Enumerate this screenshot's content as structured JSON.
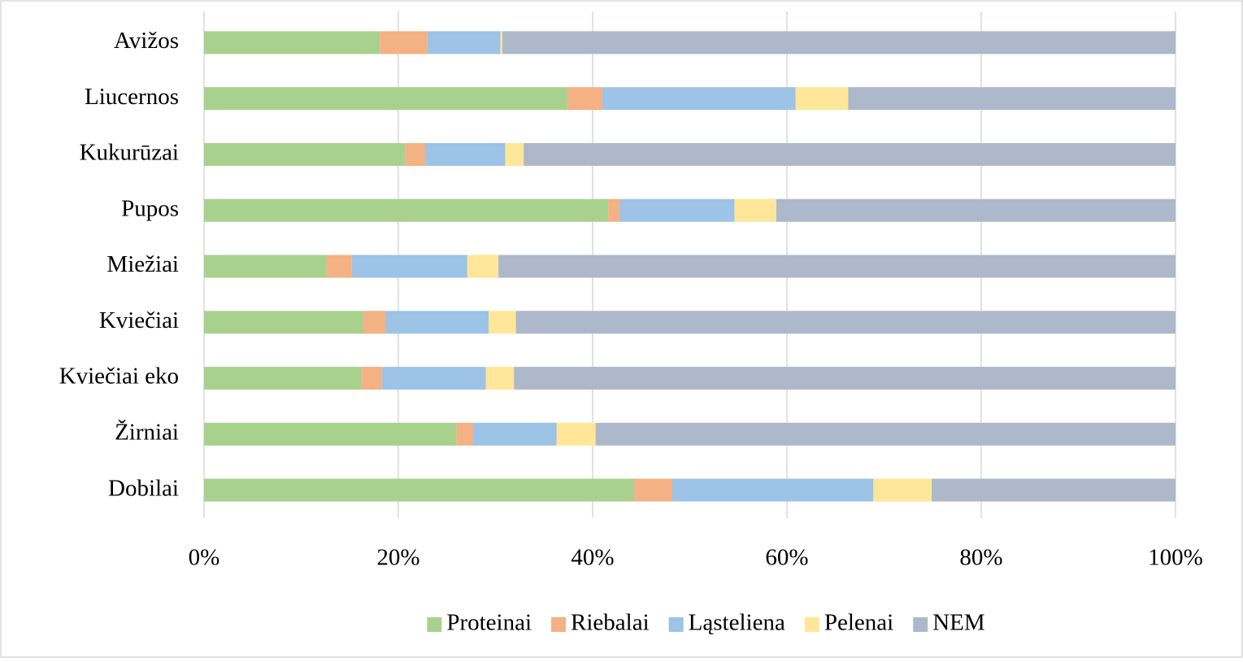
{
  "chart_data": {
    "type": "stacked_barh",
    "categories": [
      "Avižos",
      "Liucernos",
      "Kukurūzai",
      "Pupos",
      "Miežiai",
      "Kviečiai",
      "Kviečiai eko",
      "Žirniai",
      "Dobilai"
    ],
    "series": [
      {
        "name": "Proteinai",
        "color": "#a9d18e",
        "values": [
          18.1,
          37.4,
          20.7,
          41.6,
          12.6,
          16.4,
          16.2,
          26.0,
          44.3
        ]
      },
      {
        "name": "Riebalai",
        "color": "#f4b183",
        "values": [
          4.9,
          3.6,
          2.1,
          1.2,
          2.6,
          2.3,
          2.1,
          1.7,
          3.9
        ]
      },
      {
        "name": "Ląsteliena",
        "color": "#9dc3e6",
        "values": [
          7.5,
          19.9,
          8.2,
          11.8,
          11.9,
          10.6,
          10.7,
          8.6,
          20.7
        ]
      },
      {
        "name": "Pelenai",
        "color": "#ffe699",
        "values": [
          0.2,
          5.4,
          1.9,
          4.3,
          3.2,
          2.8,
          2.9,
          4.0,
          6.0
        ]
      },
      {
        "name": "NEM",
        "color": "#adb9ca",
        "values": [
          69.3,
          33.7,
          67.1,
          41.1,
          69.7,
          67.9,
          68.1,
          59.7,
          25.1
        ]
      }
    ],
    "xlim": [
      0,
      100
    ],
    "xticks": [
      {
        "value": 0,
        "label": "0%"
      },
      {
        "value": 20,
        "label": "20%"
      },
      {
        "value": 40,
        "label": "40%"
      },
      {
        "value": 60,
        "label": "60%"
      },
      {
        "value": 80,
        "label": "80%"
      },
      {
        "value": 100,
        "label": "100%"
      }
    ],
    "grid": true,
    "legend": "bottom"
  }
}
